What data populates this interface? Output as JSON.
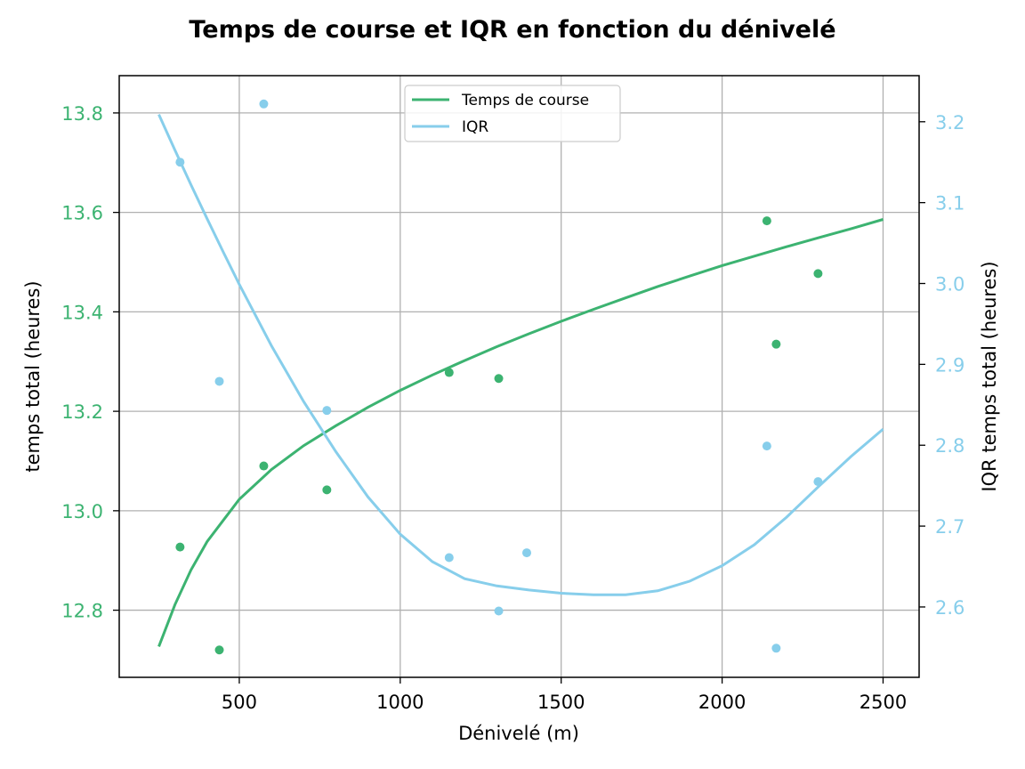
{
  "chart_data": {
    "type": "scatter",
    "title": "Temps de course et IQR en fonction du dénivelé",
    "xlabel": "Dénivelé (m)",
    "ylabel_left": "temps total (heures)",
    "ylabel_right": "IQR temps total (heures)",
    "xlim": [
      127,
      2612
    ],
    "ylim_left": [
      12.665,
      13.875
    ],
    "ylim_right": [
      2.513,
      3.257
    ],
    "x_ticks": [
      500,
      1000,
      1500,
      2000,
      2500
    ],
    "y_left_ticks": [
      "12.8",
      "13.0",
      "13.2",
      "13.4",
      "13.6",
      "13.8"
    ],
    "y_right_ticks": [
      "2.6",
      "2.7",
      "2.8",
      "2.9",
      "3.0",
      "3.1",
      "3.2"
    ],
    "grid": true,
    "legend_position": "top-center",
    "colors": {
      "temps": "#3cb371",
      "iqr": "#87ceeb"
    },
    "series": [
      {
        "name": "Temps de course",
        "axis": "left",
        "points": [
          [
            316,
            12.927
          ],
          [
            438,
            12.72
          ],
          [
            576,
            13.09
          ],
          [
            772,
            13.042
          ],
          [
            1152,
            13.278
          ],
          [
            1306,
            13.266
          ],
          [
            2139,
            13.583
          ],
          [
            2168,
            13.335
          ],
          [
            2298,
            13.477
          ]
        ],
        "fit": [
          [
            250,
            12.727
          ],
          [
            300,
            12.811
          ],
          [
            350,
            12.881
          ],
          [
            400,
            12.938
          ],
          [
            500,
            13.023
          ],
          [
            600,
            13.083
          ],
          [
            700,
            13.131
          ],
          [
            800,
            13.171
          ],
          [
            900,
            13.208
          ],
          [
            1000,
            13.242
          ],
          [
            1100,
            13.273
          ],
          [
            1200,
            13.302
          ],
          [
            1300,
            13.33
          ],
          [
            1400,
            13.356
          ],
          [
            1500,
            13.381
          ],
          [
            1600,
            13.405
          ],
          [
            1700,
            13.428
          ],
          [
            1800,
            13.451
          ],
          [
            1900,
            13.472
          ],
          [
            2000,
            13.493
          ],
          [
            2100,
            13.512
          ],
          [
            2200,
            13.531
          ],
          [
            2300,
            13.549
          ],
          [
            2400,
            13.567
          ],
          [
            2500,
            13.586
          ]
        ]
      },
      {
        "name": "IQR",
        "axis": "right",
        "points": [
          [
            316,
            3.15
          ],
          [
            438,
            2.879
          ],
          [
            576,
            3.222
          ],
          [
            772,
            2.843
          ],
          [
            1152,
            2.661
          ],
          [
            1306,
            2.595
          ],
          [
            1393,
            2.667
          ],
          [
            2139,
            2.799
          ],
          [
            2168,
            2.549
          ],
          [
            2298,
            2.755
          ]
        ],
        "fit": [
          [
            250,
            3.209
          ],
          [
            300,
            3.165
          ],
          [
            350,
            3.122
          ],
          [
            400,
            3.08
          ],
          [
            450,
            3.039
          ],
          [
            500,
            2.999
          ],
          [
            600,
            2.923
          ],
          [
            700,
            2.854
          ],
          [
            800,
            2.792
          ],
          [
            900,
            2.736
          ],
          [
            1000,
            2.69
          ],
          [
            1100,
            2.656
          ],
          [
            1200,
            2.635
          ],
          [
            1300,
            2.626
          ],
          [
            1400,
            2.621
          ],
          [
            1500,
            2.617
          ],
          [
            1600,
            2.615
          ],
          [
            1700,
            2.615
          ],
          [
            1800,
            2.62
          ],
          [
            1900,
            2.632
          ],
          [
            2000,
            2.651
          ],
          [
            2100,
            2.677
          ],
          [
            2200,
            2.711
          ],
          [
            2300,
            2.749
          ],
          [
            2400,
            2.786
          ],
          [
            2500,
            2.82
          ]
        ]
      }
    ]
  }
}
